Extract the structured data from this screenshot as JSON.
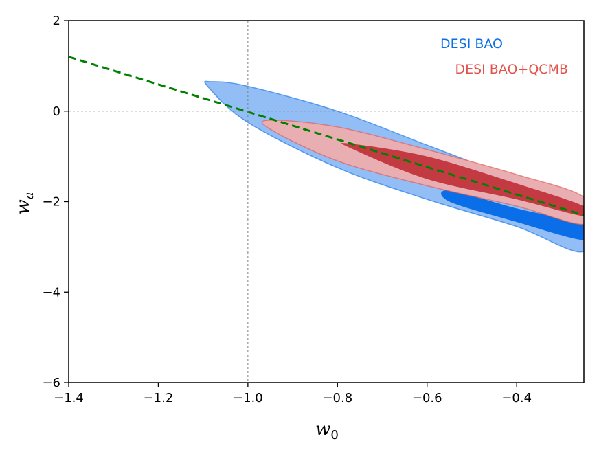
{
  "chart_data": {
    "type": "contour",
    "title": "",
    "xlabel": "w",
    "xlabel_sub": "0",
    "ylabel": "w",
    "ylabel_sub": "a",
    "xlim": [
      -1.4,
      -0.25
    ],
    "ylim": [
      -6,
      2
    ],
    "xticks": [
      -1.4,
      -1.2,
      -1.0,
      -0.8,
      -0.6,
      -0.4
    ],
    "xtick_labels": [
      "−1.4",
      "−1.2",
      "−1.0",
      "−0.8",
      "−0.6",
      "−0.4"
    ],
    "yticks": [
      -6,
      -4,
      -2,
      0,
      2
    ],
    "ytick_labels": [
      "−6",
      "−4",
      "−2",
      "0",
      "2"
    ],
    "reference_lines": {
      "w0": -1.0,
      "wa": 0
    },
    "legend_position": "top-right",
    "series": [
      {
        "name": "DESI BAO",
        "color": "#0a6ee8",
        "contours": [
          {
            "level": "95%",
            "color": "#93bef5",
            "points": [
              [
                -1.08,
                0.65
              ],
              [
                -1.0,
                0.55
              ],
              [
                -0.8,
                0.0
              ],
              [
                -0.6,
                -0.75
              ],
              [
                -0.4,
                -1.5
              ],
              [
                -0.25,
                -2.0
              ],
              [
                -0.25,
                -3.1
              ],
              [
                -0.4,
                -2.55
              ],
              [
                -0.6,
                -1.95
              ],
              [
                -0.8,
                -1.25
              ],
              [
                -1.0,
                -0.25
              ],
              [
                -1.09,
                0.55
              ]
            ]
          },
          {
            "level": "68%",
            "color": "#0a6ee8",
            "points": [
              [
                -0.55,
                -1.75
              ],
              [
                -0.4,
                -2.15
              ],
              [
                -0.25,
                -2.5
              ],
              [
                -0.25,
                -2.85
              ],
              [
                -0.4,
                -2.45
              ],
              [
                -0.55,
                -2.0
              ]
            ]
          }
        ]
      },
      {
        "name": "DESI BAO+QCMB",
        "color": "#e2524a",
        "contours": [
          {
            "level": "95%",
            "color": "#e9aeb2",
            "points": [
              [
                -0.95,
                -0.2
              ],
              [
                -0.8,
                -0.35
              ],
              [
                -0.6,
                -0.85
              ],
              [
                -0.4,
                -1.4
              ],
              [
                -0.25,
                -1.9
              ],
              [
                -0.25,
                -2.5
              ],
              [
                -0.4,
                -2.1
              ],
              [
                -0.6,
                -1.65
              ],
              [
                -0.8,
                -1.1
              ],
              [
                -0.95,
                -0.4
              ]
            ]
          },
          {
            "level": "68%",
            "color": "#c43a42",
            "points": [
              [
                -0.77,
                -0.72
              ],
              [
                -0.6,
                -1.0
              ],
              [
                -0.4,
                -1.6
              ],
              [
                -0.25,
                -2.1
              ],
              [
                -0.25,
                -2.32
              ],
              [
                -0.4,
                -1.95
              ],
              [
                -0.6,
                -1.5
              ],
              [
                -0.77,
                -0.82
              ]
            ]
          }
        ]
      }
    ],
    "line": {
      "name": "dashed-line",
      "color": "#008000",
      "x": [
        -1.4,
        -0.25
      ],
      "y": [
        1.2,
        -2.3
      ]
    }
  }
}
